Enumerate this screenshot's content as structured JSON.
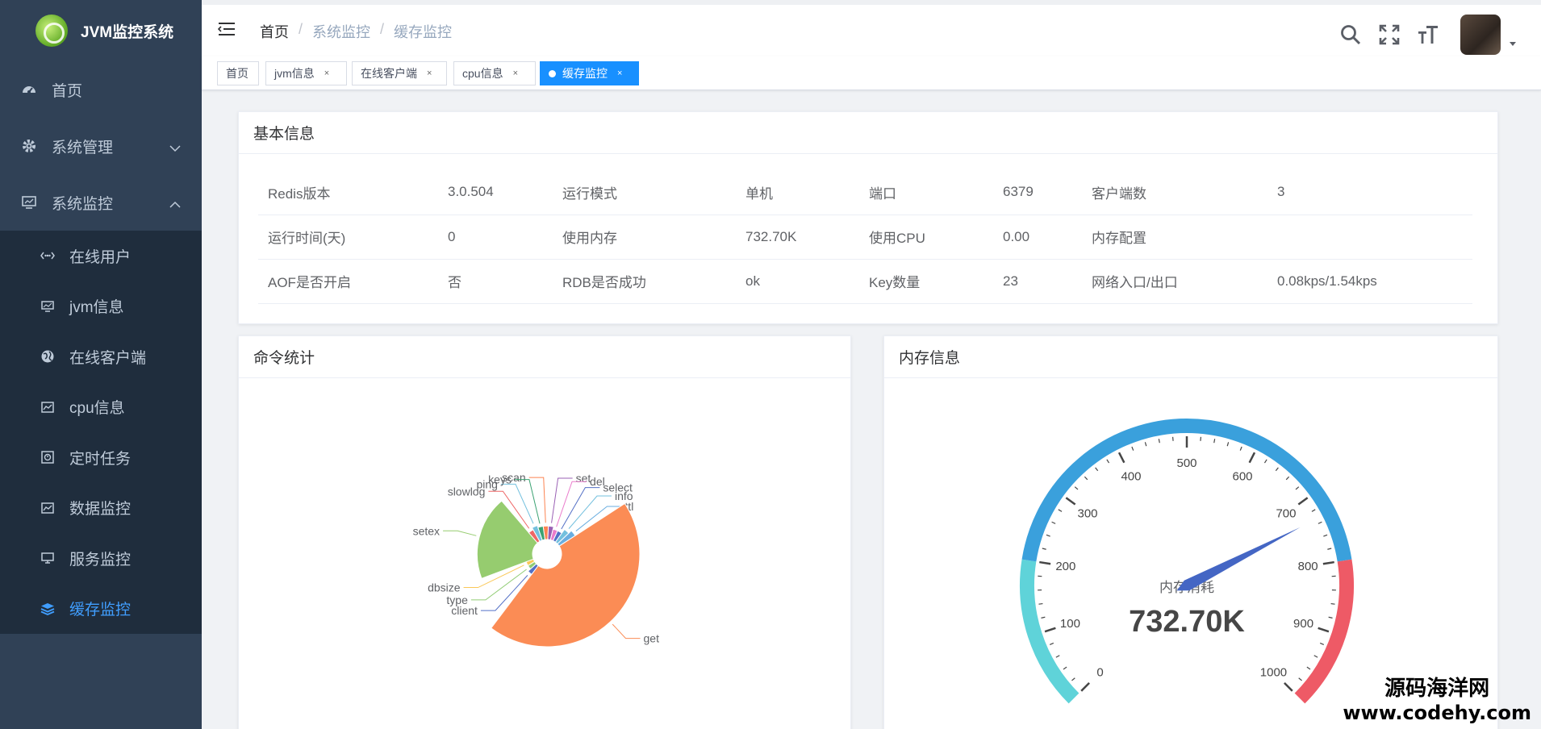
{
  "app": {
    "title": "JVM监控系统"
  },
  "sidebar": {
    "items": [
      {
        "label": "首页",
        "icon": "dashboard-icon"
      },
      {
        "label": "系统管理",
        "icon": "gear-icon"
      },
      {
        "label": "系统监控",
        "icon": "monitor-icon"
      }
    ],
    "sub_items": [
      {
        "label": "在线用户",
        "icon": "online-icon"
      },
      {
        "label": "jvm信息",
        "icon": "monitor-icon"
      },
      {
        "label": "在线客户端",
        "icon": "globe-icon"
      },
      {
        "label": "cpu信息",
        "icon": "chart-icon"
      },
      {
        "label": "定时任务",
        "icon": "job-icon"
      },
      {
        "label": "数据监控",
        "icon": "chart-icon"
      },
      {
        "label": "服务监控",
        "icon": "server-icon"
      },
      {
        "label": "缓存监控",
        "icon": "redis-icon"
      }
    ],
    "colors": {
      "bg": "#304156",
      "sub_bg": "#1f2d3d",
      "text": "#bfcbd9",
      "active": "#409eff"
    }
  },
  "breadcrumb": [
    "首页",
    "系统监控",
    "缓存监控"
  ],
  "tags": [
    {
      "label": "首页",
      "active": false
    },
    {
      "label": "jvm信息",
      "active": false
    },
    {
      "label": "在线客户端",
      "active": false
    },
    {
      "label": "cpu信息",
      "active": false
    },
    {
      "label": "缓存监控",
      "active": true
    }
  ],
  "basic": {
    "title": "基本信息",
    "rows": [
      [
        "Redis版本",
        "3.0.504",
        "运行模式",
        "单机",
        "端口",
        "6379",
        "客户端数",
        "3"
      ],
      [
        "运行时间(天)",
        "0",
        "使用内存",
        "732.70K",
        "使用CPU",
        "0.00",
        "内存配置",
        ""
      ],
      [
        "AOF是否开启",
        "否",
        "RDB是否成功",
        "ok",
        "Key数量",
        "23",
        "网络入口/出口",
        "0.08kps/1.54kps"
      ]
    ]
  },
  "commands": {
    "title": "命令统计",
    "chart_data": {
      "type": "pie",
      "rose": true,
      "labels": [
        "get",
        "setex",
        "client",
        "type",
        "dbsize",
        "slowlog",
        "ping",
        "keys",
        "scan",
        "set",
        "del",
        "select",
        "info",
        "ttl"
      ],
      "values": [
        100,
        50,
        2,
        1,
        1,
        3,
        4,
        3,
        3,
        3,
        2,
        2,
        4,
        6
      ],
      "colors": [
        "#fb8c55",
        "#96cc6f",
        "#5470c6",
        "#91cc75",
        "#fac858",
        "#ee6666",
        "#73c0de",
        "#3ba272",
        "#fc8452",
        "#9a60b4",
        "#ea7ccc",
        "#5470c6",
        "#73c0de",
        "#6aaee0"
      ]
    }
  },
  "memory": {
    "title": "内存信息",
    "chart_data": {
      "type": "gauge",
      "min": 0,
      "max": 1000,
      "value": 732.7,
      "ticks": [
        "0",
        "100",
        "200",
        "300",
        "400",
        "500",
        "600",
        "700",
        "800",
        "900",
        "1000"
      ],
      "detail": "732.70K",
      "label": "内存消耗"
    }
  },
  "watermark": {
    "line1": "源码海洋网",
    "line2": "www.codehy.com"
  }
}
